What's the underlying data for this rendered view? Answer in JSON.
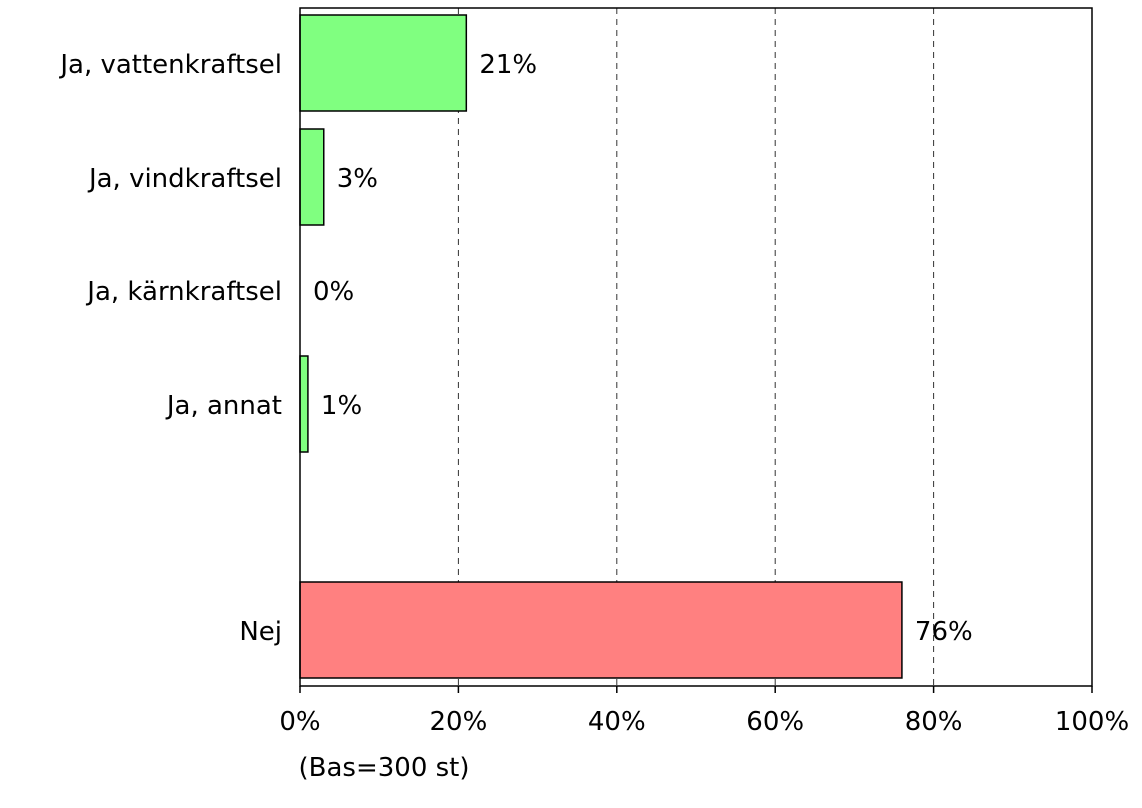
{
  "chart_data": {
    "type": "bar",
    "orientation": "horizontal",
    "categories": [
      "Ja, vattenkraftsel",
      "Ja, vindkraftsel",
      "Ja, kärnkraftsel",
      "Ja, annat",
      "Nej"
    ],
    "values": [
      21,
      3,
      0,
      1,
      76
    ],
    "value_labels": [
      "21%",
      "3%",
      "0%",
      "1%",
      "76%"
    ],
    "xlim": [
      0,
      100
    ],
    "x_ticks": [
      0,
      20,
      40,
      60,
      80,
      100
    ],
    "x_tick_labels": [
      "0%",
      "20%",
      "40%",
      "60%",
      "80%",
      "100%"
    ],
    "xlabel": "(Bas=300 st)",
    "ylabel": "",
    "title": "",
    "grid": "vertical dashed",
    "legend": "none",
    "colors": {
      "ja": "#80ff80",
      "nej": "#ff8080",
      "outline": "#000000",
      "grid": "#333333"
    }
  }
}
